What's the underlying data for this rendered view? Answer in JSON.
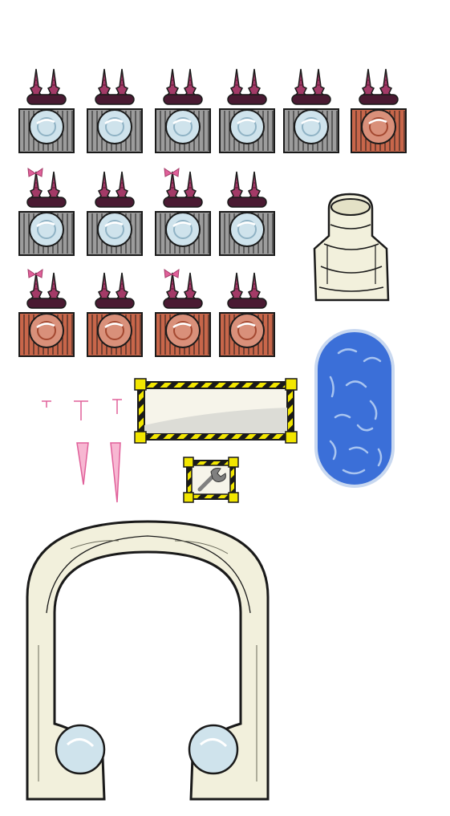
{
  "sheet": {
    "title": "",
    "machines": [
      {
        "id": "machine-r1c1",
        "state": "idle",
        "tuft": "plain"
      },
      {
        "id": "machine-r1c2",
        "state": "idle",
        "tuft": "plain"
      },
      {
        "id": "machine-r1c3",
        "state": "idle",
        "tuft": "plain"
      },
      {
        "id": "machine-r1c4",
        "state": "idle",
        "tuft": "plain"
      },
      {
        "id": "machine-r1c5",
        "state": "idle",
        "tuft": "plain"
      },
      {
        "id": "machine-r1c6",
        "state": "rusty",
        "tuft": "plain"
      },
      {
        "id": "machine-r2c1",
        "state": "idle",
        "tuft": "bow"
      },
      {
        "id": "machine-r2c2",
        "state": "idle",
        "tuft": "plain"
      },
      {
        "id": "machine-r2c3",
        "state": "idle",
        "tuft": "bow"
      },
      {
        "id": "machine-r2c4",
        "state": "idle",
        "tuft": "plain"
      },
      {
        "id": "machine-r3c1",
        "state": "rusty",
        "tuft": "bow"
      },
      {
        "id": "machine-r3c2",
        "state": "rusty",
        "tuft": "plain"
      },
      {
        "id": "machine-r3c3",
        "state": "rusty",
        "tuft": "bow"
      },
      {
        "id": "machine-r3c4",
        "state": "rusty",
        "tuft": "plain"
      }
    ],
    "props": [
      "bone-pedestal",
      "blue-capsule",
      "hazard-panel",
      "wrench-panel",
      "pink-drips",
      "bone-arch"
    ],
    "colors": {
      "metal": "#9c9c9c",
      "rust": "#c8664a",
      "tuft": "#a33a67",
      "lens": "#cfe3ec",
      "bone": "#f2f0dc",
      "capsule": "#3b6fd8",
      "hazard": "#f2e600",
      "drip": "#e0609a",
      "outline": "#1a1a1a"
    }
  }
}
